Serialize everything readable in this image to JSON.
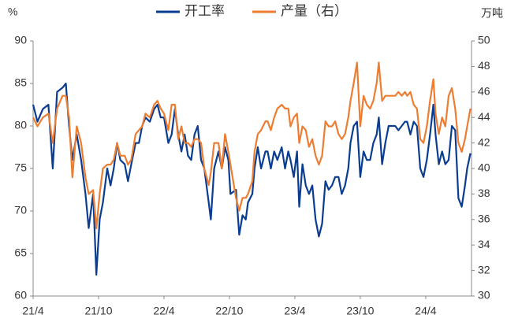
{
  "chart_data": {
    "type": "line",
    "y_label": "%",
    "y2_label": "万吨",
    "x": [
      0,
      0.4,
      0.9,
      1.4,
      1.8,
      2.2,
      2.7,
      3.0,
      3.3,
      3.6,
      4.0,
      4.4,
      4.8,
      5.1,
      5.5,
      5.8,
      6.1,
      6.4,
      6.8,
      7.1,
      7.4,
      7.7,
      8.0,
      8.4,
      8.7,
      9.0,
      9.4,
      9.7,
      10.0,
      10.3,
      10.7,
      11.1,
      11.4,
      11.7,
      12.0,
      12.4,
      12.7,
      13.0,
      13.3,
      13.6,
      13.9,
      14.2,
      14.5,
      14.8,
      15.1,
      15.4,
      15.7,
      16.1,
      16.3,
      16.6,
      17.0,
      17.3,
      17.6,
      17.9,
      18.1,
      18.6,
      18.9,
      19.2,
      19.5,
      19.7,
      20.1,
      20.3,
      20.6,
      20.9,
      21.3,
      21.5,
      21.8,
      22.1,
      22.4,
      22.8,
      23.1,
      23.4,
      23.6,
      23.9,
      24.2,
      24.4,
      24.7,
      25.0,
      25.3,
      25.6,
      25.9,
      26.2,
      26.5,
      26.8,
      27.1,
      27.4,
      27.7,
      28.0,
      28.3,
      28.6,
      28.9,
      29.1,
      29.4,
      29.7,
      30.0,
      30.3,
      30.6,
      30.9,
      31.2,
      31.5,
      31.7,
      32.0,
      32.3,
      32.6,
      32.9,
      33.2,
      33.5,
      33.8,
      34.1,
      34.3,
      34.6,
      34.9,
      35.2,
      35.5,
      35.8,
      36.1,
      36.4,
      36.7,
      36.9,
      37.2,
      37.5,
      37.8,
      38.1,
      38.4,
      38.7,
      39.0,
      39.3,
      39.6,
      39.8,
      40.1
    ],
    "series": [
      {
        "name": "开工率",
        "color": "#0a3d91",
        "values": [
          82.5,
          80.5,
          82,
          82.5,
          75,
          84,
          84.5,
          85,
          80,
          76,
          79,
          76,
          72,
          68,
          72,
          62.5,
          69,
          71,
          75,
          73,
          75,
          78,
          76,
          75.5,
          73.5,
          75.5,
          78,
          78,
          80,
          81,
          80.5,
          82,
          82.5,
          81,
          81,
          78,
          79,
          82,
          79,
          77,
          79,
          76.5,
          76,
          79,
          80,
          76,
          75,
          71,
          69,
          75,
          77,
          75,
          77.5,
          76,
          72,
          72.5,
          67.2,
          69.5,
          69,
          71,
          72,
          75,
          77.5,
          75,
          77,
          77,
          75,
          77,
          76,
          77.5,
          75,
          77,
          76,
          74,
          77,
          70.5,
          75.5,
          73,
          72,
          73,
          69,
          67,
          68.5,
          73.5,
          72.5,
          73,
          74,
          74,
          72,
          73,
          75,
          78,
          80,
          80.5,
          74,
          77,
          76,
          76,
          78,
          79,
          81,
          75.5,
          78,
          80,
          80,
          80,
          79.5,
          80,
          80.5,
          80.5,
          79,
          80.5,
          80,
          75,
          74,
          76,
          79,
          82.5,
          79,
          75.5,
          77,
          75.5,
          76,
          80,
          79.5,
          71.5,
          70.5,
          73,
          75,
          76.8
        ]
      },
      {
        "name": "产量（右）",
        "color": "#ed7d31",
        "axis": "y2",
        "values": [
          44.0,
          43.3,
          44.0,
          44.3,
          42.0,
          44.7,
          45.7,
          45.7,
          44.0,
          39.3,
          43.3,
          42.0,
          39.3,
          38.0,
          38.3,
          35.3,
          38.0,
          40.0,
          40.3,
          40.3,
          40.7,
          42.0,
          41.0,
          41.0,
          40.3,
          40.7,
          42.7,
          43.0,
          43.3,
          44.3,
          44.0,
          45.0,
          45.3,
          44.7,
          44.3,
          43.0,
          45.0,
          45.0,
          42.3,
          43.3,
          42.0,
          42.0,
          41.7,
          42.3,
          42.3,
          42.0,
          40.0,
          38.7,
          39.7,
          42.0,
          42.0,
          40.0,
          42.7,
          41.3,
          40.3,
          37.7,
          36.7,
          37.7,
          37.7,
          38.0,
          39.0,
          41.3,
          42.7,
          43.0,
          43.7,
          43.7,
          43.0,
          44.0,
          44.7,
          45.0,
          44.7,
          44.7,
          43.3,
          44.0,
          44.3,
          42.0,
          43.3,
          43.0,
          41.7,
          42.3,
          41.0,
          40.3,
          41.0,
          43.7,
          43.3,
          43.3,
          43.7,
          42.7,
          42.3,
          42.7,
          44.0,
          45.3,
          46.7,
          48.3,
          43.3,
          45.7,
          45.0,
          44.7,
          45.3,
          46.7,
          48.3,
          45.3,
          45.7,
          45.7,
          45.7,
          45.7,
          46.0,
          45.7,
          46.0,
          45.7,
          46.0,
          45.0,
          44.7,
          42.3,
          42.0,
          43.3,
          45.3,
          47.0,
          44.3,
          42.7,
          44.0,
          43.3,
          45.7,
          46.3,
          44.7,
          42.0,
          41.3,
          42.3,
          43.3,
          44.7
        ]
      }
    ],
    "xlim": [
      0,
      40.2
    ],
    "xticks": [
      {
        "value": 0,
        "label": "21/4"
      },
      {
        "value": 6,
        "label": "21/10"
      },
      {
        "value": 12,
        "label": "22/4"
      },
      {
        "value": 18,
        "label": "22/10"
      },
      {
        "value": 24,
        "label": "23/4"
      },
      {
        "value": 30,
        "label": "23/10"
      },
      {
        "value": 36,
        "label": "24/4"
      }
    ],
    "ylim": [
      60,
      90
    ],
    "yticks": [
      60,
      65,
      70,
      75,
      80,
      85,
      90
    ],
    "y2lim": [
      30,
      50
    ],
    "y2ticks": [
      30,
      32,
      34,
      36,
      38,
      40,
      42,
      44,
      46,
      48,
      50
    ],
    "grid": false,
    "legend": "top"
  }
}
